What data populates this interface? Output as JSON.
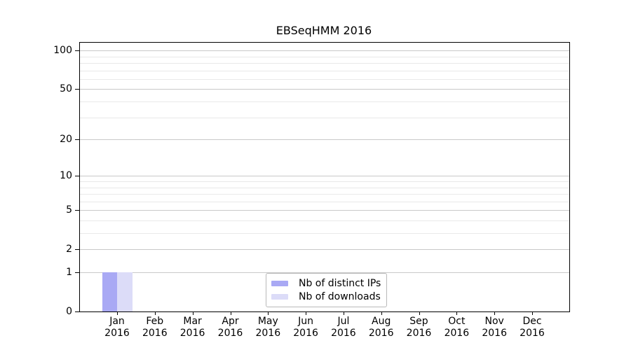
{
  "chart_data": {
    "type": "bar",
    "title": "EBSeqHMM 2016",
    "categories": [
      "Jan",
      "Feb",
      "Mar",
      "Apr",
      "May",
      "Jun",
      "Jul",
      "Aug",
      "Sep",
      "Oct",
      "Nov",
      "Dec"
    ],
    "category_year": "2016",
    "series": [
      {
        "name": "Nb of distinct IPs",
        "color": "#a9a9f4",
        "values": [
          1,
          0,
          0,
          0,
          0,
          0,
          0,
          0,
          0,
          0,
          0,
          0
        ]
      },
      {
        "name": "Nb of downloads",
        "color": "#dcdcf8",
        "values": [
          1,
          0,
          0,
          0,
          0,
          0,
          0,
          0,
          0,
          0,
          0,
          0
        ]
      }
    ],
    "y_axis": {
      "scale": "log1p",
      "ticks": [
        0,
        1,
        2,
        5,
        10,
        20,
        50,
        100
      ],
      "minor_gridlines": [
        3,
        4,
        6,
        7,
        8,
        9,
        30,
        40,
        60,
        70,
        80,
        90
      ],
      "range": [
        0,
        115
      ]
    },
    "xlabel": "",
    "ylabel": "",
    "grid": true,
    "legend_position": "lower-center-inside"
  },
  "colors": {
    "background": "#ffffff",
    "axis": "#000000",
    "major_gridline": "#c8c8c8",
    "minor_gridline": "#e9e9e9",
    "legend_border": "#b9b9b9",
    "bar_distinct_ips": "#a9a9f4",
    "bar_downloads": "#dcdcf8"
  }
}
